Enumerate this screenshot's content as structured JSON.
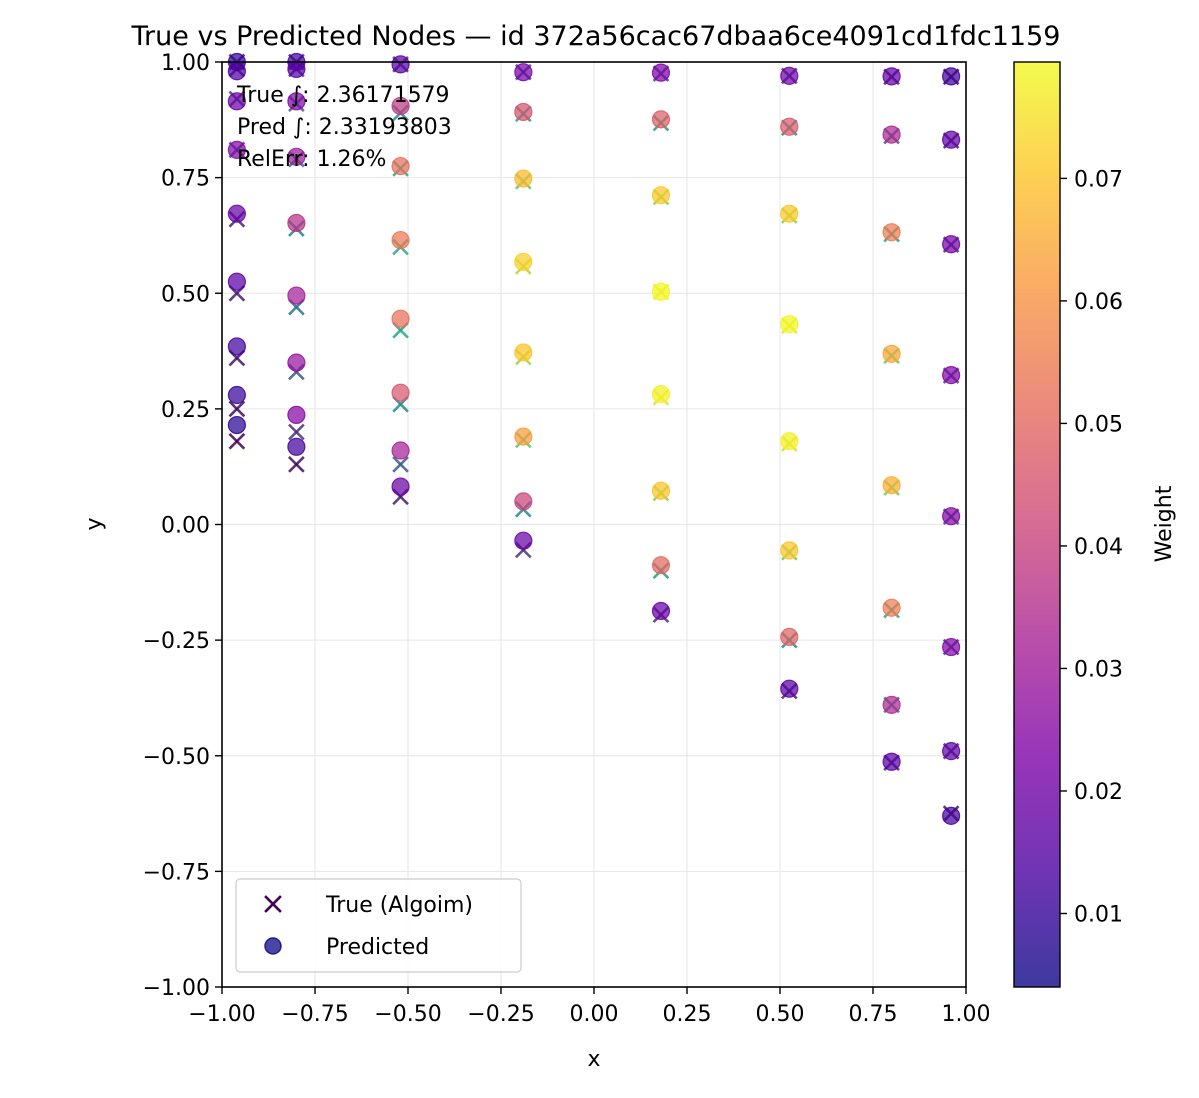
{
  "chart_data": {
    "type": "scatter",
    "title": "True vs Predicted Nodes — id 372a56cac67dbaa6ce4091cd1fdc1159",
    "xlabel": "x",
    "ylabel": "y",
    "xlim": [
      -1.0,
      1.0
    ],
    "ylim": [
      -1.0,
      1.0
    ],
    "x_ticks": [
      "−1.00",
      "−0.75",
      "−0.50",
      "−0.25",
      "0.00",
      "0.25",
      "0.50",
      "0.75",
      "1.00"
    ],
    "y_ticks": [
      "−1.00",
      "−0.75",
      "−0.50",
      "−0.25",
      "0.00",
      "0.25",
      "0.50",
      "0.75",
      "1.00"
    ],
    "grid": true,
    "colormap": "plasma",
    "colorbar": {
      "label": "Weight",
      "range": [
        0.004,
        0.0795
      ],
      "ticks": [
        0.01,
        0.02,
        0.03,
        0.04,
        0.05,
        0.06,
        0.07
      ],
      "tick_labels": [
        "0.01",
        "0.02",
        "0.03",
        "0.04",
        "0.05",
        "0.06",
        "0.07"
      ]
    },
    "annotation": {
      "true_integral": "True ∫: 2.36171579",
      "pred_integral": "Pred ∫: 2.33193803",
      "rel_err": "RelErr: 1.26%"
    },
    "legend": {
      "placement": "lower-left",
      "entries": [
        {
          "marker": "x",
          "label": "True (Algoim)"
        },
        {
          "marker": "o",
          "label": "Predicted"
        }
      ]
    },
    "series": [
      {
        "name": "True (Algoim)",
        "marker": "x",
        "colormap": "viridis",
        "points": [
          [
            -0.96,
            1.0,
            0.01
          ],
          [
            -0.96,
            0.985,
            0.012
          ],
          [
            -0.96,
            0.92,
            0.018
          ],
          [
            -0.96,
            0.81,
            0.02
          ],
          [
            -0.96,
            0.66,
            0.012
          ],
          [
            -0.96,
            0.5,
            0.01
          ],
          [
            -0.96,
            0.36,
            0.008
          ],
          [
            -0.96,
            0.25,
            0.006
          ],
          [
            -0.96,
            0.18,
            0.004
          ],
          [
            -0.8,
            1.0,
            0.01
          ],
          [
            -0.8,
            0.985,
            0.015
          ],
          [
            -0.8,
            0.91,
            0.025
          ],
          [
            -0.8,
            0.79,
            0.03
          ],
          [
            -0.8,
            0.64,
            0.038
          ],
          [
            -0.8,
            0.47,
            0.032
          ],
          [
            -0.8,
            0.33,
            0.025
          ],
          [
            -0.8,
            0.2,
            0.015
          ],
          [
            -0.8,
            0.13,
            0.006
          ],
          [
            -0.52,
            0.995,
            0.015
          ],
          [
            -0.52,
            0.89,
            0.04
          ],
          [
            -0.52,
            0.77,
            0.05
          ],
          [
            -0.52,
            0.6,
            0.05
          ],
          [
            -0.52,
            0.42,
            0.048
          ],
          [
            -0.52,
            0.26,
            0.04
          ],
          [
            -0.52,
            0.13,
            0.025
          ],
          [
            -0.52,
            0.06,
            0.01
          ],
          [
            -0.19,
            0.978,
            0.02
          ],
          [
            -0.19,
            0.888,
            0.045
          ],
          [
            -0.19,
            0.742,
            0.06
          ],
          [
            -0.19,
            0.558,
            0.07
          ],
          [
            -0.19,
            0.362,
            0.068
          ],
          [
            -0.19,
            0.183,
            0.06
          ],
          [
            -0.19,
            0.033,
            0.04
          ],
          [
            -0.19,
            -0.055,
            0.015
          ],
          [
            0.18,
            0.975,
            0.02
          ],
          [
            0.18,
            0.868,
            0.045
          ],
          [
            0.18,
            0.708,
            0.065
          ],
          [
            0.18,
            0.503,
            0.078
          ],
          [
            0.18,
            0.275,
            0.076
          ],
          [
            0.18,
            0.068,
            0.065
          ],
          [
            0.18,
            -0.1,
            0.045
          ],
          [
            0.18,
            -0.195,
            0.015
          ],
          [
            0.525,
            0.97,
            0.015
          ],
          [
            0.525,
            0.858,
            0.04
          ],
          [
            0.525,
            0.668,
            0.065
          ],
          [
            0.525,
            0.43,
            0.076
          ],
          [
            0.525,
            0.175,
            0.074
          ],
          [
            0.525,
            -0.06,
            0.062
          ],
          [
            0.525,
            -0.25,
            0.04
          ],
          [
            0.525,
            -0.36,
            0.012
          ],
          [
            0.8,
            0.968,
            0.01
          ],
          [
            0.8,
            0.84,
            0.025
          ],
          [
            0.8,
            0.628,
            0.045
          ],
          [
            0.8,
            0.365,
            0.06
          ],
          [
            0.8,
            0.08,
            0.062
          ],
          [
            0.8,
            -0.185,
            0.05
          ],
          [
            0.8,
            -0.39,
            0.035
          ],
          [
            0.8,
            -0.515,
            0.012
          ],
          [
            0.96,
            0.968,
            0.005
          ],
          [
            0.96,
            0.83,
            0.012
          ],
          [
            0.96,
            0.605,
            0.018
          ],
          [
            0.96,
            0.322,
            0.02
          ],
          [
            0.96,
            0.017,
            0.022
          ],
          [
            0.96,
            -0.265,
            0.02
          ],
          [
            0.96,
            -0.49,
            0.015
          ],
          [
            0.96,
            -0.625,
            0.008
          ]
        ]
      },
      {
        "name": "Predicted",
        "marker": "o",
        "colormap": "plasma",
        "points": [
          [
            -0.96,
            1.0,
            0.01
          ],
          [
            -0.96,
            0.98,
            0.014
          ],
          [
            -0.96,
            0.915,
            0.02
          ],
          [
            -0.96,
            0.81,
            0.024
          ],
          [
            -0.96,
            0.672,
            0.019
          ],
          [
            -0.96,
            0.525,
            0.016
          ],
          [
            -0.96,
            0.385,
            0.012
          ],
          [
            -0.96,
            0.28,
            0.01
          ],
          [
            -0.96,
            0.215,
            0.008
          ],
          [
            -0.8,
            1.0,
            0.012
          ],
          [
            -0.8,
            0.985,
            0.016
          ],
          [
            -0.8,
            0.915,
            0.024
          ],
          [
            -0.8,
            0.795,
            0.03
          ],
          [
            -0.8,
            0.652,
            0.036
          ],
          [
            -0.8,
            0.495,
            0.031
          ],
          [
            -0.8,
            0.35,
            0.028
          ],
          [
            -0.8,
            0.237,
            0.024
          ],
          [
            -0.8,
            0.168,
            0.012
          ],
          [
            -0.52,
            0.995,
            0.016
          ],
          [
            -0.52,
            0.905,
            0.038
          ],
          [
            -0.52,
            0.775,
            0.052
          ],
          [
            -0.52,
            0.615,
            0.054
          ],
          [
            -0.52,
            0.445,
            0.052
          ],
          [
            -0.52,
            0.285,
            0.046
          ],
          [
            -0.52,
            0.16,
            0.032
          ],
          [
            -0.52,
            0.082,
            0.019
          ],
          [
            -0.19,
            0.978,
            0.022
          ],
          [
            -0.19,
            0.892,
            0.045
          ],
          [
            -0.19,
            0.748,
            0.068
          ],
          [
            -0.19,
            0.568,
            0.072
          ],
          [
            -0.19,
            0.372,
            0.07
          ],
          [
            -0.19,
            0.19,
            0.062
          ],
          [
            -0.19,
            0.05,
            0.041
          ],
          [
            -0.19,
            -0.035,
            0.019
          ],
          [
            0.18,
            0.977,
            0.023
          ],
          [
            0.18,
            0.876,
            0.048
          ],
          [
            0.18,
            0.712,
            0.071
          ],
          [
            0.18,
            0.503,
            0.079
          ],
          [
            0.18,
            0.282,
            0.078
          ],
          [
            0.18,
            0.073,
            0.07
          ],
          [
            0.18,
            -0.088,
            0.05
          ],
          [
            0.18,
            -0.187,
            0.019
          ],
          [
            0.525,
            0.97,
            0.02
          ],
          [
            0.525,
            0.86,
            0.047
          ],
          [
            0.525,
            0.672,
            0.071
          ],
          [
            0.525,
            0.433,
            0.079
          ],
          [
            0.525,
            0.18,
            0.078
          ],
          [
            0.525,
            -0.056,
            0.07
          ],
          [
            0.525,
            -0.243,
            0.049
          ],
          [
            0.525,
            -0.355,
            0.016
          ],
          [
            0.8,
            0.969,
            0.018
          ],
          [
            0.8,
            0.843,
            0.034
          ],
          [
            0.8,
            0.632,
            0.055
          ],
          [
            0.8,
            0.369,
            0.064
          ],
          [
            0.8,
            0.085,
            0.066
          ],
          [
            0.8,
            -0.18,
            0.055
          ],
          [
            0.8,
            -0.39,
            0.034
          ],
          [
            0.8,
            -0.513,
            0.016
          ],
          [
            0.96,
            0.969,
            0.012
          ],
          [
            0.96,
            0.832,
            0.017
          ],
          [
            0.96,
            0.606,
            0.021
          ],
          [
            0.96,
            0.323,
            0.024
          ],
          [
            0.96,
            0.018,
            0.024
          ],
          [
            0.96,
            -0.265,
            0.024
          ],
          [
            0.96,
            -0.49,
            0.017
          ],
          [
            0.96,
            -0.63,
            0.012
          ]
        ]
      }
    ]
  }
}
